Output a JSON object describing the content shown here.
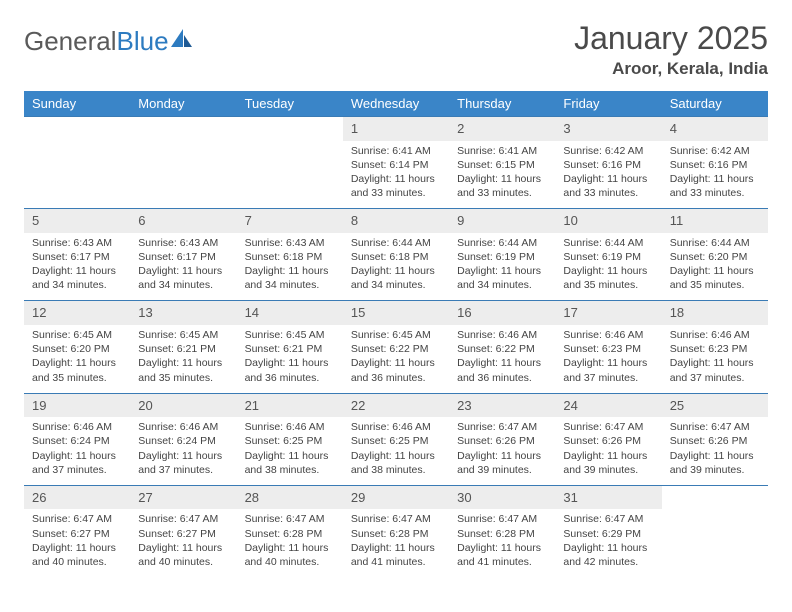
{
  "brand": {
    "part1": "General",
    "part2": "Blue"
  },
  "title": "January 2025",
  "location": "Aroor, Kerala, India",
  "colors": {
    "header_bg": "#3a85c8",
    "header_text": "#ffffff",
    "daynum_bg": "#ededed",
    "row_border": "#3a7bb5",
    "logo_blue": "#2d7bc0",
    "text": "#444444"
  },
  "weekdays": [
    "Sunday",
    "Monday",
    "Tuesday",
    "Wednesday",
    "Thursday",
    "Friday",
    "Saturday"
  ],
  "weeks": [
    [
      null,
      null,
      null,
      {
        "d": "1",
        "sr": "Sunrise: 6:41 AM",
        "ss": "Sunset: 6:14 PM",
        "dl": "Daylight: 11 hours and 33 minutes."
      },
      {
        "d": "2",
        "sr": "Sunrise: 6:41 AM",
        "ss": "Sunset: 6:15 PM",
        "dl": "Daylight: 11 hours and 33 minutes."
      },
      {
        "d": "3",
        "sr": "Sunrise: 6:42 AM",
        "ss": "Sunset: 6:16 PM",
        "dl": "Daylight: 11 hours and 33 minutes."
      },
      {
        "d": "4",
        "sr": "Sunrise: 6:42 AM",
        "ss": "Sunset: 6:16 PM",
        "dl": "Daylight: 11 hours and 33 minutes."
      }
    ],
    [
      {
        "d": "5",
        "sr": "Sunrise: 6:43 AM",
        "ss": "Sunset: 6:17 PM",
        "dl": "Daylight: 11 hours and 34 minutes."
      },
      {
        "d": "6",
        "sr": "Sunrise: 6:43 AM",
        "ss": "Sunset: 6:17 PM",
        "dl": "Daylight: 11 hours and 34 minutes."
      },
      {
        "d": "7",
        "sr": "Sunrise: 6:43 AM",
        "ss": "Sunset: 6:18 PM",
        "dl": "Daylight: 11 hours and 34 minutes."
      },
      {
        "d": "8",
        "sr": "Sunrise: 6:44 AM",
        "ss": "Sunset: 6:18 PM",
        "dl": "Daylight: 11 hours and 34 minutes."
      },
      {
        "d": "9",
        "sr": "Sunrise: 6:44 AM",
        "ss": "Sunset: 6:19 PM",
        "dl": "Daylight: 11 hours and 34 minutes."
      },
      {
        "d": "10",
        "sr": "Sunrise: 6:44 AM",
        "ss": "Sunset: 6:19 PM",
        "dl": "Daylight: 11 hours and 35 minutes."
      },
      {
        "d": "11",
        "sr": "Sunrise: 6:44 AM",
        "ss": "Sunset: 6:20 PM",
        "dl": "Daylight: 11 hours and 35 minutes."
      }
    ],
    [
      {
        "d": "12",
        "sr": "Sunrise: 6:45 AM",
        "ss": "Sunset: 6:20 PM",
        "dl": "Daylight: 11 hours and 35 minutes."
      },
      {
        "d": "13",
        "sr": "Sunrise: 6:45 AM",
        "ss": "Sunset: 6:21 PM",
        "dl": "Daylight: 11 hours and 35 minutes."
      },
      {
        "d": "14",
        "sr": "Sunrise: 6:45 AM",
        "ss": "Sunset: 6:21 PM",
        "dl": "Daylight: 11 hours and 36 minutes."
      },
      {
        "d": "15",
        "sr": "Sunrise: 6:45 AM",
        "ss": "Sunset: 6:22 PM",
        "dl": "Daylight: 11 hours and 36 minutes."
      },
      {
        "d": "16",
        "sr": "Sunrise: 6:46 AM",
        "ss": "Sunset: 6:22 PM",
        "dl": "Daylight: 11 hours and 36 minutes."
      },
      {
        "d": "17",
        "sr": "Sunrise: 6:46 AM",
        "ss": "Sunset: 6:23 PM",
        "dl": "Daylight: 11 hours and 37 minutes."
      },
      {
        "d": "18",
        "sr": "Sunrise: 6:46 AM",
        "ss": "Sunset: 6:23 PM",
        "dl": "Daylight: 11 hours and 37 minutes."
      }
    ],
    [
      {
        "d": "19",
        "sr": "Sunrise: 6:46 AM",
        "ss": "Sunset: 6:24 PM",
        "dl": "Daylight: 11 hours and 37 minutes."
      },
      {
        "d": "20",
        "sr": "Sunrise: 6:46 AM",
        "ss": "Sunset: 6:24 PM",
        "dl": "Daylight: 11 hours and 37 minutes."
      },
      {
        "d": "21",
        "sr": "Sunrise: 6:46 AM",
        "ss": "Sunset: 6:25 PM",
        "dl": "Daylight: 11 hours and 38 minutes."
      },
      {
        "d": "22",
        "sr": "Sunrise: 6:46 AM",
        "ss": "Sunset: 6:25 PM",
        "dl": "Daylight: 11 hours and 38 minutes."
      },
      {
        "d": "23",
        "sr": "Sunrise: 6:47 AM",
        "ss": "Sunset: 6:26 PM",
        "dl": "Daylight: 11 hours and 39 minutes."
      },
      {
        "d": "24",
        "sr": "Sunrise: 6:47 AM",
        "ss": "Sunset: 6:26 PM",
        "dl": "Daylight: 11 hours and 39 minutes."
      },
      {
        "d": "25",
        "sr": "Sunrise: 6:47 AM",
        "ss": "Sunset: 6:26 PM",
        "dl": "Daylight: 11 hours and 39 minutes."
      }
    ],
    [
      {
        "d": "26",
        "sr": "Sunrise: 6:47 AM",
        "ss": "Sunset: 6:27 PM",
        "dl": "Daylight: 11 hours and 40 minutes."
      },
      {
        "d": "27",
        "sr": "Sunrise: 6:47 AM",
        "ss": "Sunset: 6:27 PM",
        "dl": "Daylight: 11 hours and 40 minutes."
      },
      {
        "d": "28",
        "sr": "Sunrise: 6:47 AM",
        "ss": "Sunset: 6:28 PM",
        "dl": "Daylight: 11 hours and 40 minutes."
      },
      {
        "d": "29",
        "sr": "Sunrise: 6:47 AM",
        "ss": "Sunset: 6:28 PM",
        "dl": "Daylight: 11 hours and 41 minutes."
      },
      {
        "d": "30",
        "sr": "Sunrise: 6:47 AM",
        "ss": "Sunset: 6:28 PM",
        "dl": "Daylight: 11 hours and 41 minutes."
      },
      {
        "d": "31",
        "sr": "Sunrise: 6:47 AM",
        "ss": "Sunset: 6:29 PM",
        "dl": "Daylight: 11 hours and 42 minutes."
      },
      null
    ]
  ]
}
